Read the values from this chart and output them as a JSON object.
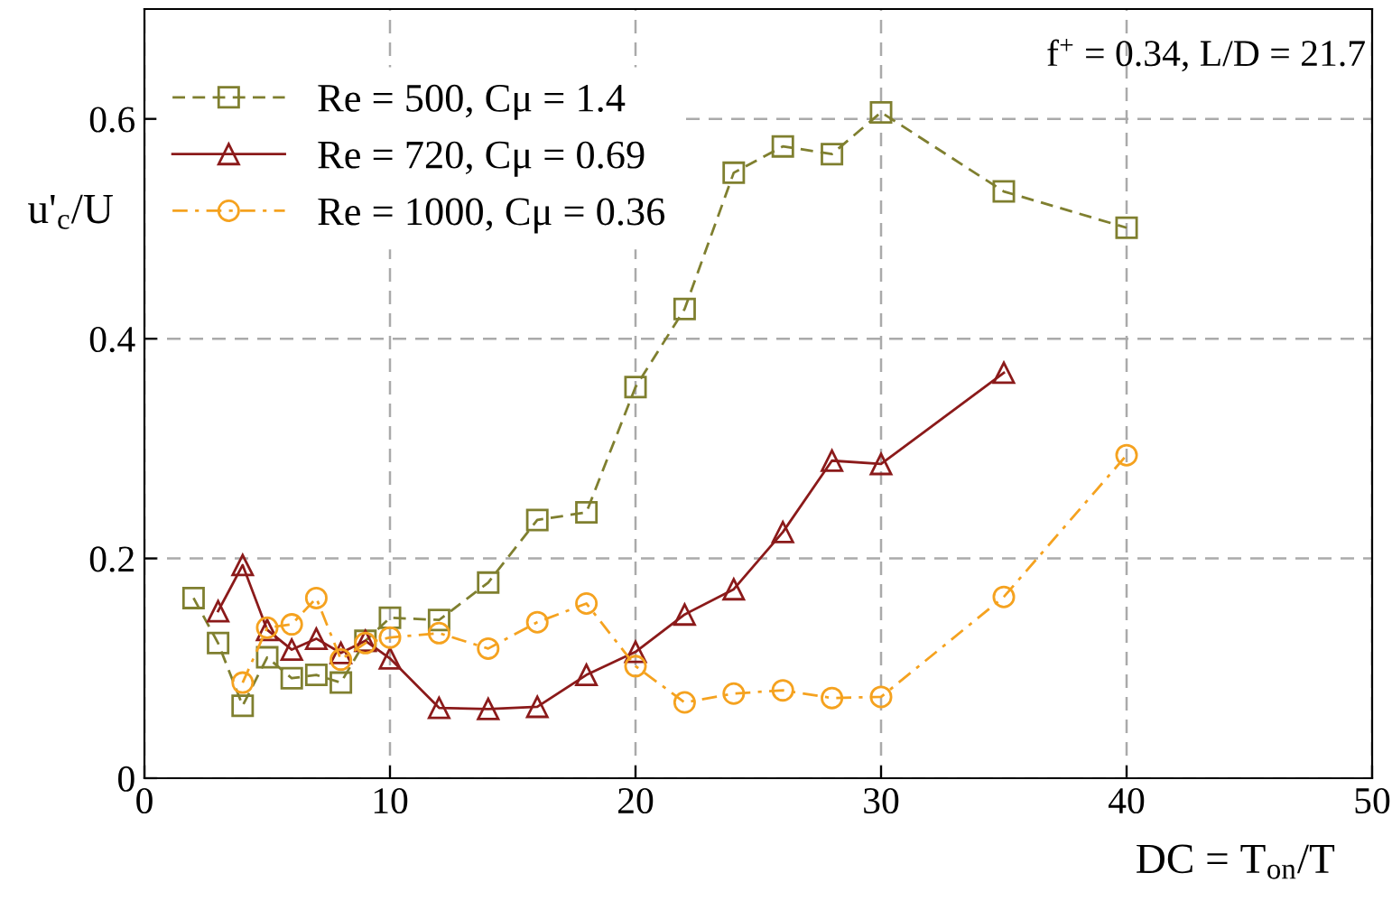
{
  "chart_data": {
    "type": "line",
    "xlabel": "DC = T$_{on}$/T",
    "ylabel": "u'$_{c}$/U",
    "annotations": [
      "f$^{+}$ = 0.34, L/D = 21.7"
    ],
    "xlim": [
      0,
      50
    ],
    "ylim": [
      0,
      0.7
    ],
    "xticks": [
      0,
      10,
      20,
      30,
      40,
      50
    ],
    "yticks": [
      0,
      0.2,
      0.4,
      0.6
    ],
    "grid": true,
    "legend": "top left",
    "series": [
      {
        "name": "Re = 500, Cμ = 1.4",
        "color": "#7f7f2f",
        "marker": "square",
        "line_style": "dashed",
        "x": [
          2,
          3,
          4,
          5,
          6,
          7,
          8,
          9,
          10,
          12,
          14,
          16,
          18,
          20,
          22,
          24,
          26,
          28,
          30,
          35,
          40
        ],
        "values": [
          0.164,
          0.123,
          0.066,
          0.11,
          0.091,
          0.094,
          0.087,
          0.125,
          0.146,
          0.144,
          0.178,
          0.235,
          0.242,
          0.356,
          0.427,
          0.551,
          0.575,
          0.568,
          0.606,
          0.534,
          0.501
        ]
      },
      {
        "name": "Re = 720, Cμ = 0.69",
        "color": "#8b1a1a",
        "marker": "triangle",
        "line_style": "solid",
        "x": [
          3,
          4,
          5,
          6,
          7,
          8,
          9,
          10,
          12,
          14,
          16,
          18,
          20,
          22,
          24,
          26,
          28,
          30,
          35
        ],
        "values": [
          0.152,
          0.194,
          0.135,
          0.117,
          0.127,
          0.114,
          0.125,
          0.109,
          0.064,
          0.063,
          0.065,
          0.094,
          0.115,
          0.149,
          0.172,
          0.224,
          0.289,
          0.286,
          0.369
        ]
      },
      {
        "name": "Re = 1000, Cμ = 0.36",
        "color": "#f5a21f",
        "marker": "circle",
        "line_style": "dashdot",
        "x": [
          4,
          5,
          6,
          7,
          8,
          9,
          10,
          12,
          14,
          16,
          18,
          20,
          22,
          24,
          26,
          28,
          30,
          35,
          40
        ],
        "values": [
          0.087,
          0.137,
          0.14,
          0.164,
          0.108,
          0.123,
          0.128,
          0.132,
          0.118,
          0.142,
          0.159,
          0.102,
          0.069,
          0.077,
          0.08,
          0.073,
          0.074,
          0.165,
          0.294
        ]
      }
    ]
  }
}
